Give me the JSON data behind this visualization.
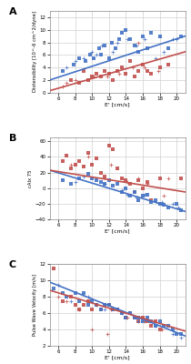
{
  "background_color": "#ffffff",
  "panel_bg": "#ffffff",
  "xlim": [
    5,
    21
  ],
  "xticks": [
    6,
    8,
    10,
    12,
    14,
    16,
    18,
    20
  ],
  "xlabel": "E' [cm/s]",
  "panelA": {
    "label": "A",
    "ylabel": "Distensibility [10^-6 cm^2/dyne]",
    "ylim": [
      0,
      13
    ],
    "yticks": [
      0,
      2,
      4,
      6,
      8,
      10,
      12
    ],
    "blue_sq_x": [
      6.5,
      7.8,
      8.5,
      9.2,
      9.8,
      10.2,
      10.8,
      11.0,
      11.5,
      12.0,
      12.3,
      12.8,
      13.2,
      13.5,
      14.0,
      14.5,
      15.0,
      15.5,
      16.0,
      16.5,
      17.0,
      18.0,
      19.0,
      20.5
    ],
    "blue_sq_y": [
      3.5,
      4.5,
      5.5,
      5.0,
      6.0,
      5.5,
      7.0,
      6.0,
      7.5,
      5.5,
      8.0,
      7.0,
      8.5,
      9.5,
      10.0,
      8.5,
      7.5,
      6.5,
      9.0,
      7.0,
      9.5,
      9.0,
      7.0,
      9.0
    ],
    "blue_cross_x": [
      7.0,
      8.0,
      9.0,
      10.0,
      10.5,
      11.2,
      12.5,
      13.0,
      14.2,
      15.2,
      16.2,
      17.5,
      18.5,
      19.5,
      20.0
    ],
    "blue_cross_y": [
      4.0,
      5.0,
      5.5,
      6.5,
      6.0,
      7.5,
      6.5,
      8.0,
      8.5,
      7.5,
      8.5,
      5.5,
      6.5,
      8.5,
      8.5
    ],
    "red_sq_x": [
      7.5,
      8.5,
      9.0,
      9.5,
      10.0,
      10.5,
      11.0,
      11.5,
      12.0,
      12.5,
      13.0,
      13.5,
      14.0,
      14.5,
      15.0,
      15.5,
      16.0,
      16.5,
      17.0,
      18.0,
      19.0
    ],
    "red_sq_y": [
      2.0,
      1.5,
      3.5,
      2.0,
      2.5,
      3.0,
      2.5,
      3.5,
      3.0,
      2.0,
      3.5,
      4.0,
      3.0,
      5.0,
      2.5,
      3.5,
      4.5,
      3.5,
      3.0,
      4.0,
      4.5
    ],
    "red_cross_x": [
      6.5,
      7.0,
      8.0,
      10.2,
      11.8,
      13.2,
      14.8,
      16.2,
      17.8,
      15.5
    ],
    "red_cross_y": [
      1.0,
      1.5,
      2.0,
      2.5,
      2.5,
      3.0,
      4.0,
      4.0,
      3.5,
      8.0
    ],
    "blue_line_x": [
      5,
      21
    ],
    "blue_line_y": [
      2.0,
      9.0
    ],
    "red_line_x": [
      5,
      21
    ],
    "red_line_y": [
      0.3,
      6.5
    ],
    "blue_color": "#4472c4",
    "red_color": "#c0504d"
  },
  "panelB": {
    "label": "B",
    "ylabel": "cAlx 75",
    "ylim": [
      -40,
      65
    ],
    "yticks": [
      -40,
      -20,
      0,
      20,
      40,
      60
    ],
    "blue_sq_x": [
      6.5,
      7.5,
      8.5,
      9.5,
      10.0,
      10.5,
      11.0,
      11.5,
      12.0,
      12.5,
      13.0,
      13.5,
      14.0,
      14.5,
      15.0,
      15.5,
      16.0,
      16.5,
      17.0,
      17.5,
      18.0,
      18.5,
      19.0,
      20.0,
      20.5
    ],
    "blue_sq_y": [
      10.0,
      5.0,
      12.0,
      18.0,
      12.0,
      10.0,
      8.0,
      5.0,
      10.0,
      3.0,
      5.0,
      -5.0,
      0.0,
      -10.0,
      -5.0,
      -15.0,
      -10.0,
      -8.0,
      -18.0,
      -15.0,
      -20.0,
      -22.0,
      -25.0,
      -20.0,
      -28.0
    ],
    "blue_cross_x": [
      8.0,
      9.0,
      11.5,
      13.5,
      14.2,
      15.2,
      16.2,
      18.2,
      19.5,
      20.2
    ],
    "blue_cross_y": [
      8.0,
      15.0,
      5.0,
      -3.0,
      -8.0,
      -12.0,
      -8.0,
      -18.0,
      -20.0,
      -25.0
    ],
    "red_sq_x": [
      6.5,
      7.0,
      7.5,
      8.0,
      8.5,
      9.0,
      9.5,
      10.0,
      10.5,
      11.0,
      11.5,
      12.0,
      12.5,
      13.0,
      13.5,
      14.0,
      14.5,
      15.0,
      15.5,
      16.0,
      16.5,
      17.0,
      18.0,
      20.5
    ],
    "red_sq_y": [
      35.0,
      42.0,
      25.0,
      30.0,
      35.0,
      28.0,
      45.0,
      30.0,
      38.0,
      20.0,
      15.0,
      55.0,
      50.0,
      25.0,
      12.0,
      10.0,
      5.0,
      -5.0,
      10.0,
      0.0,
      8.0,
      -15.0,
      12.0,
      12.0
    ],
    "red_cross_x": [
      7.5,
      9.5,
      12.2,
      14.2,
      15.5,
      16.5,
      18.5,
      19.0
    ],
    "red_cross_y": [
      30.0,
      40.0,
      30.0,
      8.0,
      12.0,
      5.0,
      -10.0,
      12.0
    ],
    "blue_line_x": [
      5,
      21
    ],
    "blue_line_y": [
      23.0,
      -30.0
    ],
    "red_line_x": [
      5,
      21
    ],
    "red_line_y": [
      23.0,
      -5.0
    ],
    "blue_color": "#4472c4",
    "red_color": "#c0504d"
  },
  "panelC": {
    "label": "C",
    "ylabel": "Pulse Wave Velocity [m/s]",
    "ylim": [
      2,
      12
    ],
    "yticks": [
      2,
      4,
      6,
      8,
      10,
      12
    ],
    "blue_sq_x": [
      5.5,
      6.5,
      7.0,
      8.0,
      8.5,
      9.0,
      9.5,
      10.0,
      10.5,
      11.0,
      11.5,
      12.0,
      12.5,
      13.0,
      13.5,
      14.0,
      14.5,
      15.0,
      15.5,
      16.0,
      16.5,
      17.0,
      17.5,
      18.0,
      18.5,
      19.0,
      19.5,
      20.0,
      20.5
    ],
    "blue_sq_y": [
      9.0,
      8.5,
      8.0,
      8.5,
      7.5,
      8.5,
      7.0,
      7.5,
      7.0,
      6.5,
      7.0,
      7.0,
      6.5,
      6.5,
      6.0,
      5.5,
      6.0,
      5.5,
      5.5,
      5.0,
      5.5,
      5.0,
      4.5,
      5.0,
      4.5,
      4.5,
      4.0,
      3.5,
      3.5
    ],
    "blue_cross_x": [
      6.0,
      7.5,
      9.5,
      11.5,
      13.5,
      15.5,
      17.5,
      19.5,
      20.5
    ],
    "blue_cross_y": [
      9.5,
      7.5,
      8.0,
      6.5,
      6.0,
      5.0,
      4.5,
      3.5,
      3.0
    ],
    "red_sq_x": [
      5.5,
      6.5,
      7.5,
      8.0,
      8.5,
      9.0,
      9.5,
      10.0,
      10.5,
      11.0,
      11.5,
      12.0,
      12.5,
      13.0,
      13.5,
      14.0,
      14.5,
      15.0,
      15.5,
      16.0,
      16.5,
      17.0,
      17.5,
      18.0
    ],
    "red_sq_y": [
      11.5,
      7.5,
      8.0,
      7.0,
      6.5,
      7.0,
      7.5,
      6.5,
      7.0,
      6.5,
      7.0,
      7.0,
      6.5,
      6.5,
      6.0,
      5.5,
      6.0,
      5.5,
      5.0,
      5.5,
      5.0,
      4.5,
      5.0,
      4.0
    ],
    "red_cross_x": [
      6.0,
      7.0,
      8.5,
      10.5,
      12.2,
      14.2,
      16.2,
      18.2,
      10.0,
      11.8
    ],
    "red_cross_y": [
      8.0,
      7.5,
      6.5,
      7.0,
      6.5,
      5.5,
      5.0,
      4.0,
      4.0,
      3.5
    ],
    "blue_line_x": [
      5,
      21
    ],
    "blue_line_y": [
      9.8,
      3.2
    ],
    "red_line_x": [
      5,
      21
    ],
    "red_line_y": [
      8.8,
      3.8
    ],
    "blue_color": "#4472c4",
    "red_color": "#c0504d"
  }
}
